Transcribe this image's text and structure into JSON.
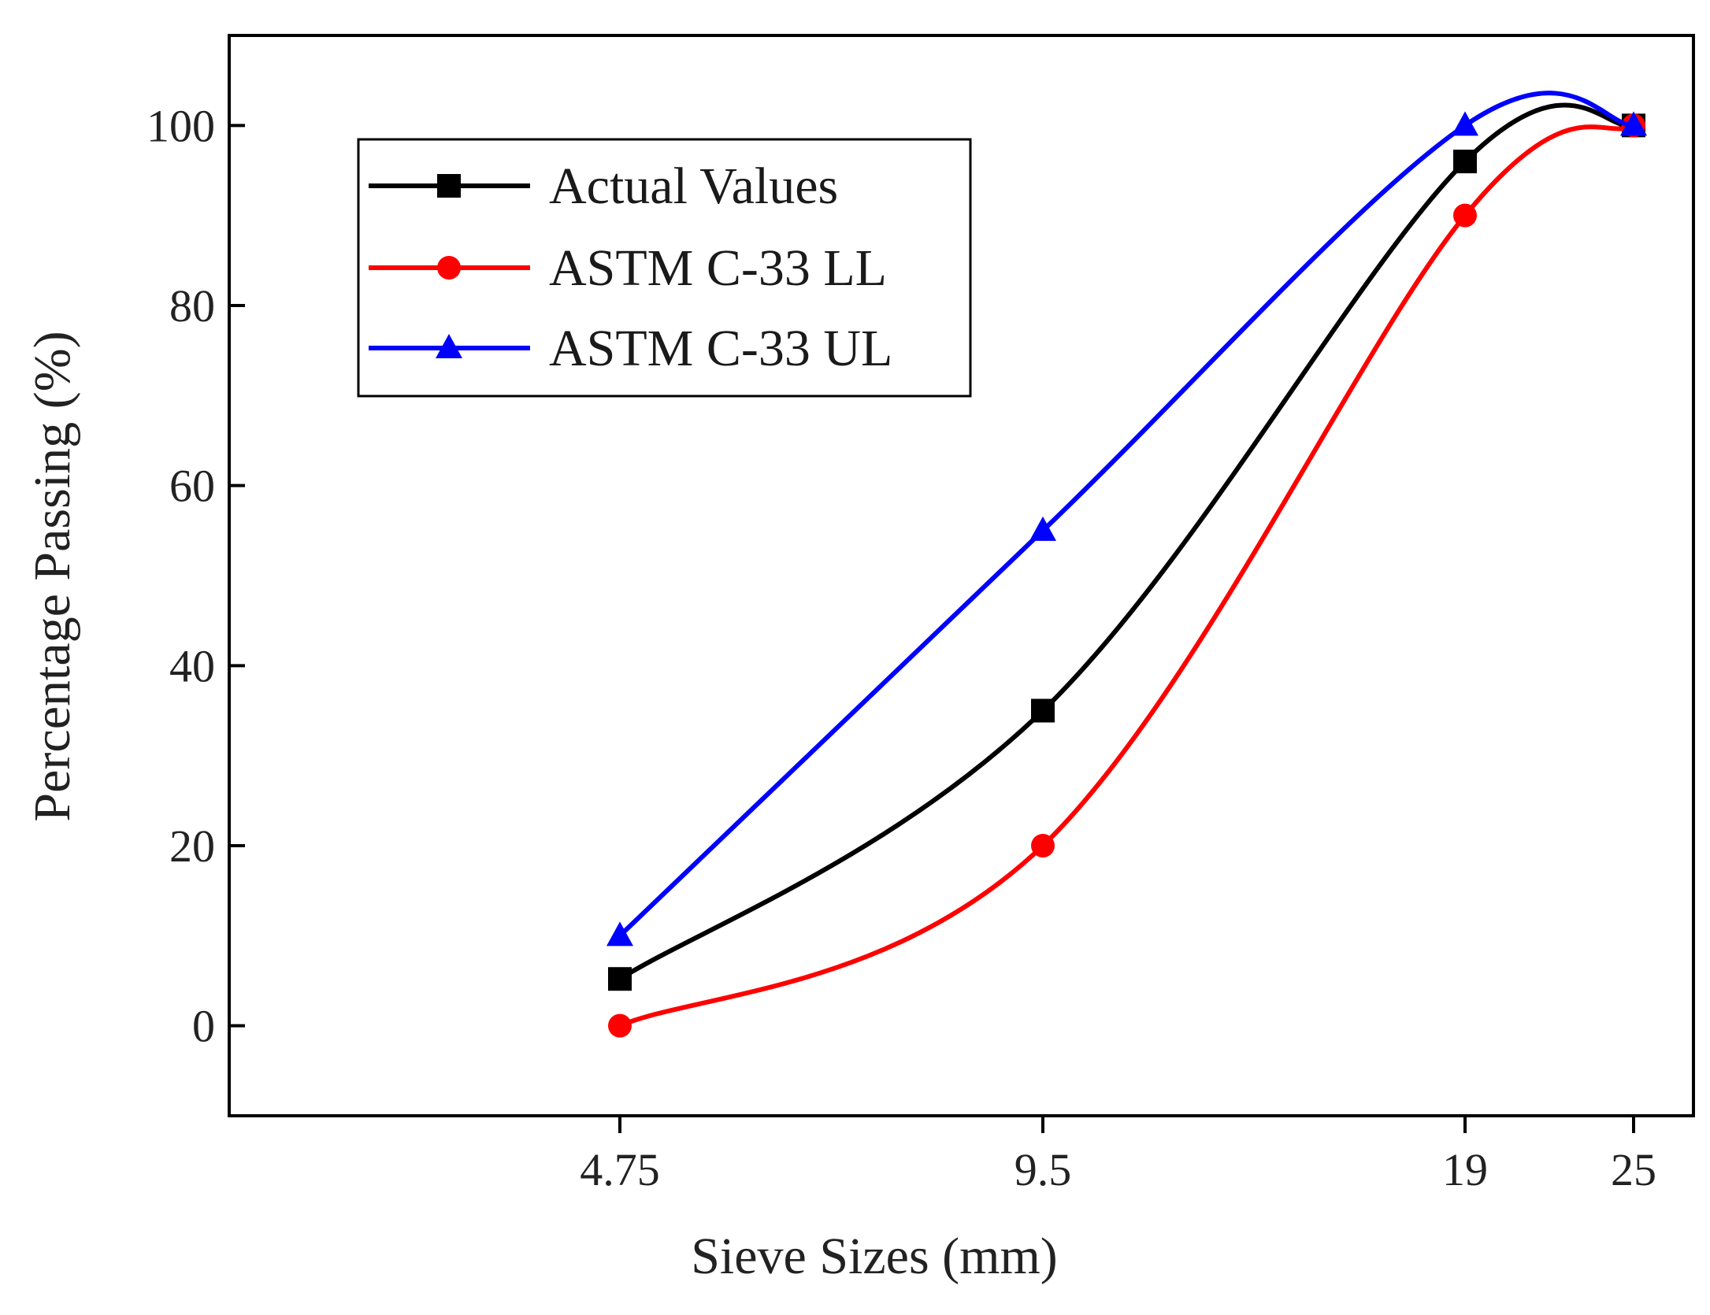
{
  "chart_data": {
    "type": "line",
    "title": "",
    "xlabel": "Sieve Sizes (mm)",
    "ylabel": "Percentage Passing (%)",
    "categories": [
      "4.75",
      "9.5",
      "19",
      "25"
    ],
    "ylim": [
      -10,
      110
    ],
    "yticks": [
      0,
      20,
      40,
      60,
      80,
      100
    ],
    "yticks_labels": [
      "0",
      "20",
      "40",
      "60",
      "80",
      "100"
    ],
    "grid": false,
    "legend_position": "top-left",
    "series": [
      {
        "name": "Actual Values",
        "values": [
          5.2,
          35,
          96,
          100
        ],
        "color": "#000000",
        "marker": "square"
      },
      {
        "name": "ASTM C-33 LL",
        "values": [
          0,
          20,
          90,
          100
        ],
        "color": "#ff0000",
        "marker": "circle"
      },
      {
        "name": "ASTM C-33 UL",
        "values": [
          10,
          55,
          100,
          100
        ],
        "color": "#0000ff",
        "marker": "triangle"
      }
    ]
  }
}
